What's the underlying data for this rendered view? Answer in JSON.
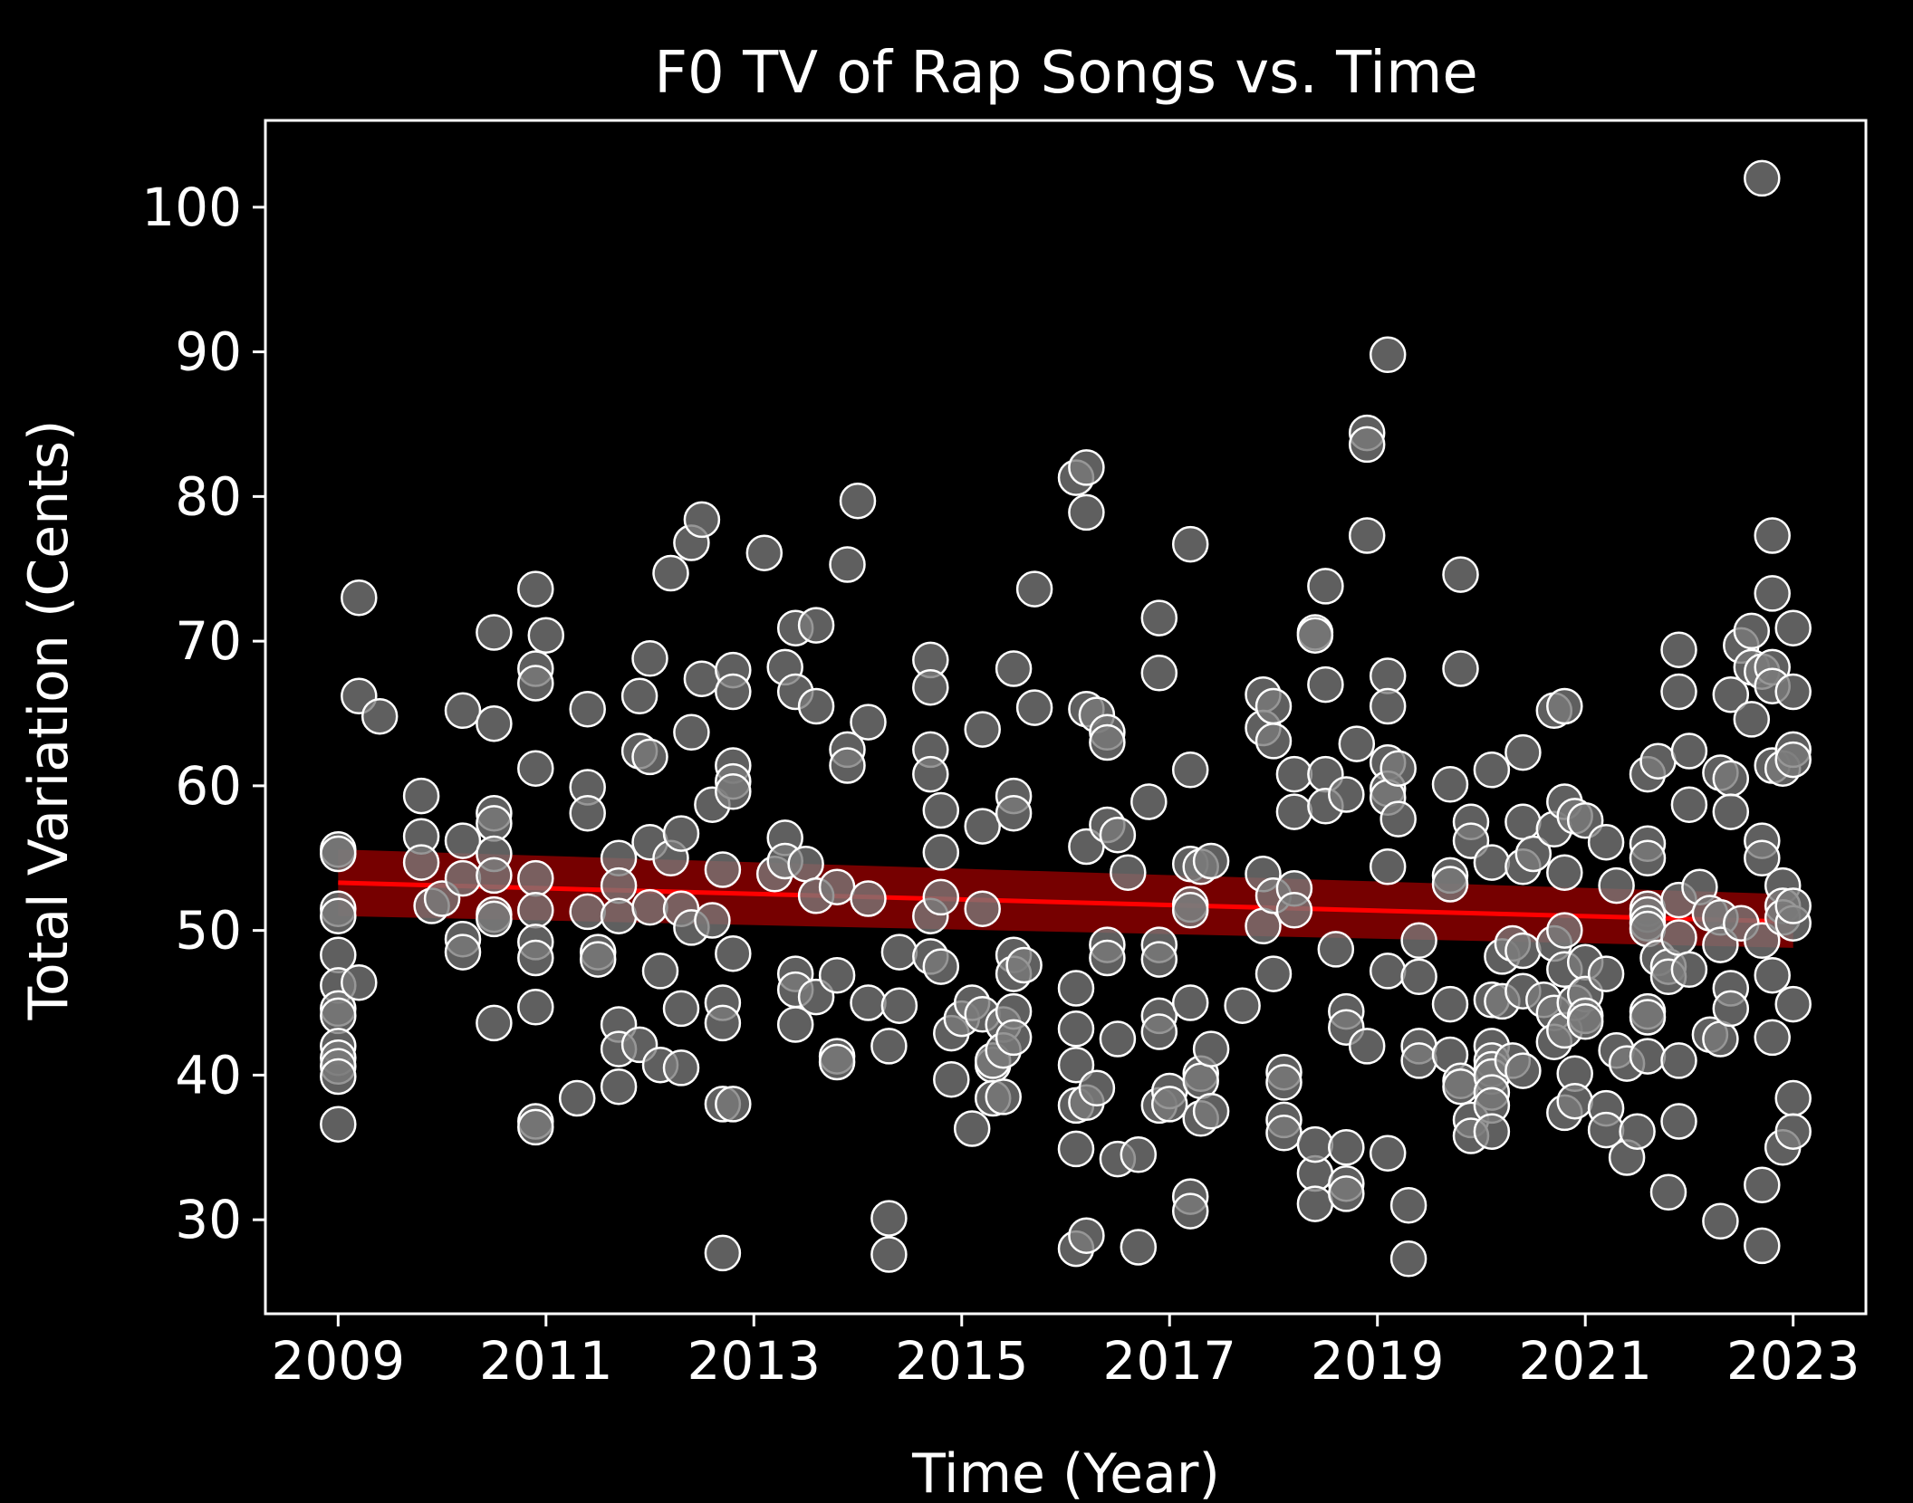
{
  "chart_data": {
    "type": "scatter",
    "title": "F0 TV of Rap Songs vs. Time",
    "xlabel": "Time (Year)",
    "ylabel": "Total Variation (Cents)",
    "xlim": [
      2008.3,
      2023.7
    ],
    "ylim": [
      23.5,
      106
    ],
    "xticks": [
      2009,
      2011,
      2013,
      2015,
      2017,
      2019,
      2021,
      2023
    ],
    "yticks": [
      30,
      40,
      50,
      60,
      70,
      80,
      90,
      100
    ],
    "grid": false,
    "colors": {
      "background": "#000000",
      "points_fill": "#7a7a7a",
      "points_edge": "#ffffff",
      "trend_line": "#ff0000",
      "confidence_band": "#8b0000"
    },
    "trend": {
      "x": [
        2009,
        2023
      ],
      "y": [
        53.3,
        50.6
      ],
      "ci_low": [
        51.0,
        48.8
      ],
      "ci_high": [
        55.6,
        52.5
      ]
    },
    "points": [
      [
        2009.0,
        55.6
      ],
      [
        2009.0,
        55.3
      ],
      [
        2009.0,
        51.5
      ],
      [
        2009.0,
        51.0
      ],
      [
        2009.0,
        48.3
      ],
      [
        2009.0,
        46.2
      ],
      [
        2009.0,
        44.6
      ],
      [
        2009.0,
        44.1
      ],
      [
        2009.0,
        42.0
      ],
      [
        2009.0,
        41.2
      ],
      [
        2009.0,
        40.6
      ],
      [
        2009.0,
        39.9
      ],
      [
        2009.0,
        36.6
      ],
      [
        2009.2,
        73.0
      ],
      [
        2009.2,
        66.2
      ],
      [
        2009.2,
        46.4
      ],
      [
        2009.4,
        64.8
      ],
      [
        2009.8,
        59.3
      ],
      [
        2009.8,
        56.5
      ],
      [
        2009.8,
        54.7
      ],
      [
        2009.9,
        51.7
      ],
      [
        2010.0,
        52.2
      ],
      [
        2010.2,
        65.2
      ],
      [
        2010.2,
        56.2
      ],
      [
        2010.2,
        53.6
      ],
      [
        2010.2,
        49.4
      ],
      [
        2010.2,
        48.5
      ],
      [
        2010.5,
        70.6
      ],
      [
        2010.5,
        64.3
      ],
      [
        2010.5,
        58.1
      ],
      [
        2010.5,
        57.4
      ],
      [
        2010.5,
        55.3
      ],
      [
        2010.5,
        53.8
      ],
      [
        2010.5,
        51.1
      ],
      [
        2010.5,
        50.8
      ],
      [
        2010.5,
        43.6
      ],
      [
        2010.9,
        73.6
      ],
      [
        2010.9,
        68.1
      ],
      [
        2010.9,
        67.1
      ],
      [
        2010.9,
        61.2
      ],
      [
        2010.9,
        53.6
      ],
      [
        2010.9,
        51.4
      ],
      [
        2010.9,
        49.2
      ],
      [
        2010.9,
        48.1
      ],
      [
        2010.9,
        44.7
      ],
      [
        2010.9,
        36.8
      ],
      [
        2010.9,
        36.4
      ],
      [
        2011.0,
        70.4
      ],
      [
        2011.4,
        65.3
      ],
      [
        2011.4,
        59.9
      ],
      [
        2011.4,
        58.1
      ],
      [
        2011.4,
        51.3
      ],
      [
        2011.5,
        48.5
      ],
      [
        2011.5,
        48.0
      ],
      [
        2011.3,
        38.4
      ],
      [
        2011.7,
        55.0
      ],
      [
        2011.7,
        53.1
      ],
      [
        2011.7,
        51.0
      ],
      [
        2011.7,
        43.5
      ],
      [
        2011.7,
        41.8
      ],
      [
        2011.7,
        39.2
      ],
      [
        2011.9,
        66.2
      ],
      [
        2011.9,
        62.4
      ],
      [
        2011.9,
        42.1
      ],
      [
        2012.0,
        68.8
      ],
      [
        2012.0,
        62.0
      ],
      [
        2012.0,
        56.1
      ],
      [
        2012.0,
        51.6
      ],
      [
        2012.1,
        47.2
      ],
      [
        2012.1,
        40.7
      ],
      [
        2012.2,
        74.7
      ],
      [
        2012.2,
        55.0
      ],
      [
        2012.3,
        56.7
      ],
      [
        2012.3,
        51.5
      ],
      [
        2012.3,
        44.6
      ],
      [
        2012.3,
        40.5
      ],
      [
        2012.4,
        76.8
      ],
      [
        2012.4,
        63.7
      ],
      [
        2012.4,
        50.2
      ],
      [
        2012.5,
        78.4
      ],
      [
        2012.5,
        67.4
      ],
      [
        2012.6,
        58.7
      ],
      [
        2012.6,
        50.7
      ],
      [
        2012.7,
        54.2
      ],
      [
        2012.7,
        45.0
      ],
      [
        2012.7,
        43.6
      ],
      [
        2012.7,
        38.0
      ],
      [
        2012.7,
        27.7
      ],
      [
        2012.8,
        68.0
      ],
      [
        2012.8,
        66.5
      ],
      [
        2012.8,
        61.4
      ],
      [
        2012.8,
        60.3
      ],
      [
        2012.8,
        59.6
      ],
      [
        2012.8,
        48.4
      ],
      [
        2012.8,
        38.0
      ],
      [
        2013.1,
        76.1
      ],
      [
        2013.2,
        53.9
      ],
      [
        2013.3,
        68.2
      ],
      [
        2013.3,
        56.4
      ],
      [
        2013.3,
        54.8
      ],
      [
        2013.4,
        66.5
      ],
      [
        2013.4,
        47.0
      ],
      [
        2013.4,
        45.9
      ],
      [
        2013.4,
        43.5
      ],
      [
        2013.4,
        70.9
      ],
      [
        2013.5,
        54.6
      ],
      [
        2013.6,
        71.1
      ],
      [
        2013.6,
        65.5
      ],
      [
        2013.6,
        52.4
      ],
      [
        2013.6,
        45.4
      ],
      [
        2013.8,
        46.9
      ],
      [
        2013.8,
        41.3
      ],
      [
        2013.8,
        40.9
      ],
      [
        2013.8,
        53.0
      ],
      [
        2013.9,
        75.3
      ],
      [
        2013.9,
        62.5
      ],
      [
        2013.9,
        61.4
      ],
      [
        2014.0,
        79.7
      ],
      [
        2014.1,
        64.4
      ],
      [
        2014.1,
        52.2
      ],
      [
        2014.1,
        45.0
      ],
      [
        2014.3,
        42.0
      ],
      [
        2014.3,
        30.1
      ],
      [
        2014.3,
        27.6
      ],
      [
        2014.4,
        48.5
      ],
      [
        2014.4,
        44.8
      ],
      [
        2014.7,
        68.7
      ],
      [
        2014.7,
        66.8
      ],
      [
        2014.7,
        62.5
      ],
      [
        2014.7,
        60.8
      ],
      [
        2014.7,
        48.2
      ],
      [
        2014.7,
        51.0
      ],
      [
        2014.8,
        58.3
      ],
      [
        2014.8,
        55.4
      ],
      [
        2014.8,
        52.3
      ],
      [
        2014.8,
        47.5
      ],
      [
        2014.9,
        42.9
      ],
      [
        2014.9,
        39.7
      ],
      [
        2015.0,
        43.9
      ],
      [
        2015.1,
        45.0
      ],
      [
        2015.1,
        36.3
      ],
      [
        2015.2,
        63.9
      ],
      [
        2015.2,
        57.2
      ],
      [
        2015.2,
        51.5
      ],
      [
        2015.2,
        44.2
      ],
      [
        2015.3,
        40.7
      ],
      [
        2015.3,
        41.0
      ],
      [
        2015.3,
        38.4
      ],
      [
        2015.4,
        43.5
      ],
      [
        2015.4,
        41.7
      ],
      [
        2015.4,
        38.5
      ],
      [
        2015.5,
        68.1
      ],
      [
        2015.5,
        59.3
      ],
      [
        2015.5,
        58.1
      ],
      [
        2015.5,
        48.3
      ],
      [
        2015.5,
        47.0
      ],
      [
        2015.5,
        44.4
      ],
      [
        2015.5,
        42.6
      ],
      [
        2015.6,
        47.6
      ],
      [
        2015.7,
        73.6
      ],
      [
        2015.7,
        65.4
      ],
      [
        2016.1,
        81.3
      ],
      [
        2016.1,
        46.0
      ],
      [
        2016.1,
        43.2
      ],
      [
        2016.1,
        40.7
      ],
      [
        2016.1,
        37.9
      ],
      [
        2016.1,
        34.9
      ],
      [
        2016.1,
        28.0
      ],
      [
        2016.2,
        82.0
      ],
      [
        2016.2,
        78.9
      ],
      [
        2016.2,
        65.3
      ],
      [
        2016.2,
        55.8
      ],
      [
        2016.2,
        38.1
      ],
      [
        2016.2,
        28.9
      ],
      [
        2016.3,
        64.9
      ],
      [
        2016.3,
        39.1
      ],
      [
        2016.4,
        63.7
      ],
      [
        2016.4,
        63.0
      ],
      [
        2016.4,
        57.3
      ],
      [
        2016.4,
        49.0
      ],
      [
        2016.4,
        48.1
      ],
      [
        2016.5,
        56.6
      ],
      [
        2016.5,
        42.5
      ],
      [
        2016.5,
        34.2
      ],
      [
        2016.6,
        54.0
      ],
      [
        2016.7,
        28.1
      ],
      [
        2016.7,
        34.5
      ],
      [
        2016.8,
        58.9
      ],
      [
        2016.9,
        71.6
      ],
      [
        2016.9,
        67.8
      ],
      [
        2016.9,
        49.0
      ],
      [
        2016.9,
        48.0
      ],
      [
        2016.9,
        44.1
      ],
      [
        2016.9,
        43.0
      ],
      [
        2016.9,
        37.9
      ],
      [
        2017.0,
        38.9
      ],
      [
        2017.0,
        38.0
      ],
      [
        2017.2,
        54.6
      ],
      [
        2017.2,
        51.8
      ],
      [
        2017.2,
        51.4
      ],
      [
        2017.2,
        76.7
      ],
      [
        2017.2,
        61.1
      ],
      [
        2017.2,
        45.0
      ],
      [
        2017.2,
        31.6
      ],
      [
        2017.2,
        30.6
      ],
      [
        2017.3,
        54.4
      ],
      [
        2017.3,
        40.1
      ],
      [
        2017.3,
        39.6
      ],
      [
        2017.3,
        37.0
      ],
      [
        2017.4,
        54.8
      ],
      [
        2017.4,
        41.8
      ],
      [
        2017.4,
        37.5
      ],
      [
        2017.7,
        44.8
      ],
      [
        2017.9,
        66.3
      ],
      [
        2017.9,
        64.0
      ],
      [
        2017.9,
        53.9
      ],
      [
        2017.9,
        50.3
      ],
      [
        2018.0,
        65.5
      ],
      [
        2018.0,
        63.1
      ],
      [
        2018.0,
        52.4
      ],
      [
        2018.0,
        47.0
      ],
      [
        2018.1,
        40.2
      ],
      [
        2018.1,
        39.5
      ],
      [
        2018.1,
        36.9
      ],
      [
        2018.1,
        36.0
      ],
      [
        2018.2,
        60.8
      ],
      [
        2018.2,
        58.2
      ],
      [
        2018.2,
        52.9
      ],
      [
        2018.2,
        51.4
      ],
      [
        2018.4,
        70.6
      ],
      [
        2018.4,
        70.4
      ],
      [
        2018.4,
        33.2
      ],
      [
        2018.4,
        31.1
      ],
      [
        2018.4,
        35.2
      ],
      [
        2018.5,
        73.8
      ],
      [
        2018.5,
        67.0
      ],
      [
        2018.5,
        60.8
      ],
      [
        2018.5,
        58.6
      ],
      [
        2018.6,
        48.7
      ],
      [
        2018.7,
        59.4
      ],
      [
        2018.7,
        44.4
      ],
      [
        2018.7,
        43.3
      ],
      [
        2018.7,
        35.0
      ],
      [
        2018.7,
        32.5
      ],
      [
        2018.7,
        31.8
      ],
      [
        2018.9,
        84.4
      ],
      [
        2018.9,
        83.6
      ],
      [
        2018.9,
        77.3
      ],
      [
        2018.8,
        62.9
      ],
      [
        2018.9,
        42.0
      ],
      [
        2019.1,
        89.8
      ],
      [
        2019.1,
        67.6
      ],
      [
        2019.1,
        65.5
      ],
      [
        2019.1,
        61.6
      ],
      [
        2019.1,
        59.8
      ],
      [
        2019.1,
        59.2
      ],
      [
        2019.1,
        54.4
      ],
      [
        2019.1,
        47.2
      ],
      [
        2019.1,
        34.6
      ],
      [
        2019.2,
        61.2
      ],
      [
        2019.2,
        57.7
      ],
      [
        2019.3,
        31.0
      ],
      [
        2019.3,
        27.3
      ],
      [
        2019.4,
        49.3
      ],
      [
        2019.4,
        46.8
      ],
      [
        2019.4,
        42.0
      ],
      [
        2019.4,
        41.0
      ],
      [
        2019.7,
        60.1
      ],
      [
        2019.7,
        53.8
      ],
      [
        2019.7,
        53.2
      ],
      [
        2019.7,
        44.9
      ],
      [
        2019.7,
        41.4
      ],
      [
        2019.8,
        74.6
      ],
      [
        2019.8,
        68.1
      ],
      [
        2019.8,
        39.6
      ],
      [
        2019.8,
        39.2
      ],
      [
        2019.9,
        57.5
      ],
      [
        2019.9,
        56.2
      ],
      [
        2019.9,
        36.9
      ],
      [
        2019.9,
        35.8
      ],
      [
        2020.1,
        61.1
      ],
      [
        2020.1,
        54.7
      ],
      [
        2020.1,
        45.2
      ],
      [
        2020.1,
        42.0
      ],
      [
        2020.1,
        41.0
      ],
      [
        2020.1,
        40.4
      ],
      [
        2020.1,
        39.9
      ],
      [
        2020.1,
        38.8
      ],
      [
        2020.1,
        37.9
      ],
      [
        2020.1,
        36.1
      ],
      [
        2020.2,
        48.2
      ],
      [
        2020.2,
        45.1
      ],
      [
        2020.3,
        49.1
      ],
      [
        2020.3,
        41.0
      ],
      [
        2020.4,
        62.3
      ],
      [
        2020.4,
        57.5
      ],
      [
        2020.4,
        54.4
      ],
      [
        2020.4,
        48.6
      ],
      [
        2020.4,
        45.8
      ],
      [
        2020.4,
        40.3
      ],
      [
        2020.5,
        55.3
      ],
      [
        2020.6,
        45.2
      ],
      [
        2020.7,
        65.2
      ],
      [
        2020.7,
        57.0
      ],
      [
        2020.7,
        49.1
      ],
      [
        2020.7,
        44.3
      ],
      [
        2020.7,
        42.3
      ],
      [
        2020.8,
        65.5
      ],
      [
        2020.8,
        58.9
      ],
      [
        2020.8,
        54.0
      ],
      [
        2020.8,
        50.0
      ],
      [
        2020.8,
        47.3
      ],
      [
        2020.8,
        43.1
      ],
      [
        2020.8,
        37.4
      ],
      [
        2020.9,
        57.9
      ],
      [
        2020.9,
        45.0
      ],
      [
        2020.9,
        40.1
      ],
      [
        2020.9,
        38.2
      ],
      [
        2021.0,
        57.6
      ],
      [
        2021.0,
        47.8
      ],
      [
        2021.0,
        45.6
      ],
      [
        2021.0,
        44.1
      ],
      [
        2021.0,
        43.7
      ],
      [
        2021.2,
        56.1
      ],
      [
        2021.2,
        47.0
      ],
      [
        2021.2,
        37.7
      ],
      [
        2021.2,
        36.2
      ],
      [
        2021.3,
        53.1
      ],
      [
        2021.3,
        41.7
      ],
      [
        2021.4,
        40.8
      ],
      [
        2021.4,
        34.3
      ],
      [
        2021.5,
        36.1
      ],
      [
        2021.6,
        60.8
      ],
      [
        2021.6,
        56.0
      ],
      [
        2021.6,
        55.0
      ],
      [
        2021.6,
        51.5
      ],
      [
        2021.6,
        51.1
      ],
      [
        2021.6,
        50.5
      ],
      [
        2021.6,
        50.1
      ],
      [
        2021.6,
        44.4
      ],
      [
        2021.6,
        44.0
      ],
      [
        2021.6,
        41.3
      ],
      [
        2021.7,
        61.7
      ],
      [
        2021.7,
        48.1
      ],
      [
        2021.8,
        47.5
      ],
      [
        2021.8,
        46.8
      ],
      [
        2021.8,
        31.9
      ],
      [
        2021.9,
        69.4
      ],
      [
        2021.9,
        66.5
      ],
      [
        2021.9,
        52.1
      ],
      [
        2021.9,
        49.5
      ],
      [
        2021.9,
        41.0
      ],
      [
        2021.9,
        36.8
      ],
      [
        2022.0,
        62.4
      ],
      [
        2022.0,
        58.7
      ],
      [
        2022.0,
        47.3
      ],
      [
        2022.1,
        53.0
      ],
      [
        2022.2,
        51.2
      ],
      [
        2022.2,
        42.8
      ],
      [
        2022.3,
        50.9
      ],
      [
        2022.3,
        42.5
      ],
      [
        2022.3,
        29.9
      ],
      [
        2022.3,
        60.9
      ],
      [
        2022.4,
        60.5
      ],
      [
        2022.4,
        58.2
      ],
      [
        2022.4,
        46.0
      ],
      [
        2022.4,
        44.6
      ],
      [
        2022.3,
        49.0
      ],
      [
        2022.4,
        66.3
      ],
      [
        2022.5,
        69.7
      ],
      [
        2022.5,
        50.5
      ],
      [
        2022.6,
        70.7
      ],
      [
        2022.6,
        68.2
      ],
      [
        2022.6,
        64.6
      ],
      [
        2022.7,
        67.9
      ],
      [
        2022.7,
        56.2
      ],
      [
        2022.7,
        55.0
      ],
      [
        2022.7,
        49.3
      ],
      [
        2022.7,
        32.4
      ],
      [
        2022.7,
        28.2
      ],
      [
        2022.7,
        102.0
      ],
      [
        2022.8,
        77.3
      ],
      [
        2022.8,
        73.3
      ],
      [
        2022.8,
        68.2
      ],
      [
        2022.8,
        66.9
      ],
      [
        2022.8,
        61.4
      ],
      [
        2022.8,
        46.9
      ],
      [
        2022.8,
        42.6
      ],
      [
        2022.9,
        61.2
      ],
      [
        2022.9,
        53.1
      ],
      [
        2022.9,
        51.7
      ],
      [
        2022.9,
        50.9
      ],
      [
        2023.0,
        50.5
      ],
      [
        2022.9,
        35.0
      ],
      [
        2023.0,
        70.9
      ],
      [
        2023.0,
        66.5
      ],
      [
        2023.0,
        62.5
      ],
      [
        2023.0,
        61.8
      ],
      [
        2023.0,
        51.7
      ],
      [
        2023.0,
        44.9
      ],
      [
        2023.0,
        38.4
      ],
      [
        2023.0,
        36.1
      ]
    ]
  }
}
